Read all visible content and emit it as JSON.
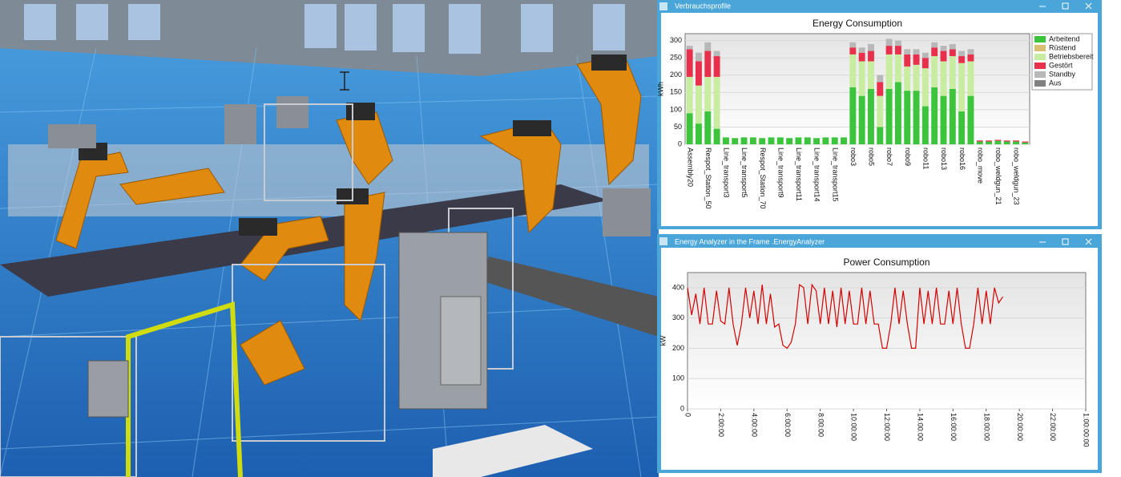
{
  "windows": [
    {
      "title": "Verbrauchsprofile"
    },
    {
      "title": "Energy Analyzer in the Frame .EnergyAnalyzer"
    }
  ],
  "chart_data": [
    {
      "type": "bar",
      "title": "Energy Consumption",
      "y_label": "kWh",
      "categories": [
        "Assembly20",
        null,
        "Respot_Station_50",
        null,
        "Line_transport3",
        null,
        "Line_transport5",
        null,
        "Respot_Station_70",
        null,
        "Line_transport9",
        null,
        "Line_transport11",
        null,
        "Line_transport14",
        null,
        "Line_transport15",
        null,
        "robo3",
        null,
        "robo5",
        null,
        "robo7",
        null,
        "robo9",
        null,
        "robo11",
        null,
        "robo13",
        null,
        "robo16",
        null,
        "robo_move",
        null,
        "robo_weldgun_21",
        null,
        "robo_weldgun_23",
        null
      ],
      "series": [
        {
          "name": "Arbeitend",
          "color": "#3cc43c",
          "values": [
            90,
            60,
            95,
            45,
            20,
            18,
            20,
            20,
            18,
            20,
            20,
            18,
            20,
            20,
            18,
            20,
            20,
            20,
            165,
            140,
            160,
            50,
            160,
            180,
            155,
            155,
            110,
            165,
            140,
            160,
            95,
            140,
            8,
            8,
            10,
            8,
            8,
            5
          ]
        },
        {
          "name": "Rüstend",
          "color": "#d8c070",
          "values": [
            0,
            0,
            0,
            0,
            0,
            0,
            0,
            0,
            0,
            0,
            0,
            0,
            0,
            0,
            0,
            0,
            0,
            0,
            0,
            0,
            0,
            0,
            0,
            0,
            0,
            0,
            0,
            0,
            0,
            0,
            0,
            0,
            0,
            0,
            0,
            0,
            0,
            0
          ]
        },
        {
          "name": "Betriebsbereit",
          "color": "#c8eca0",
          "values": [
            105,
            110,
            100,
            150,
            0,
            0,
            0,
            0,
            0,
            0,
            0,
            0,
            0,
            0,
            0,
            0,
            0,
            0,
            95,
            100,
            80,
            90,
            100,
            80,
            70,
            75,
            110,
            90,
            100,
            95,
            140,
            100,
            0,
            0,
            0,
            0,
            0,
            0
          ]
        },
        {
          "name": "Gestört",
          "color": "#e8304c",
          "values": [
            80,
            70,
            75,
            60,
            0,
            0,
            0,
            0,
            0,
            0,
            0,
            0,
            0,
            0,
            0,
            0,
            0,
            0,
            20,
            25,
            30,
            40,
            25,
            25,
            35,
            30,
            30,
            25,
            30,
            20,
            20,
            20,
            3,
            3,
            3,
            3,
            3,
            3
          ]
        },
        {
          "name": "Standby",
          "color": "#b8b8b8",
          "values": [
            10,
            25,
            25,
            15,
            0,
            0,
            0,
            0,
            0,
            0,
            0,
            0,
            0,
            0,
            0,
            0,
            0,
            0,
            15,
            15,
            20,
            20,
            20,
            15,
            15,
            15,
            15,
            15,
            15,
            15,
            15,
            15,
            0,
            0,
            0,
            0,
            0,
            0
          ]
        },
        {
          "name": "Aus",
          "color": "#808080",
          "values": [
            0,
            0,
            0,
            0,
            0,
            0,
            0,
            0,
            0,
            0,
            0,
            0,
            0,
            0,
            0,
            0,
            0,
            0,
            0,
            0,
            0,
            0,
            0,
            0,
            0,
            0,
            0,
            0,
            0,
            0,
            0,
            0,
            0,
            0,
            0,
            0,
            0,
            0
          ]
        }
      ],
      "ylim": [
        0,
        320
      ],
      "yticks": [
        0,
        50,
        100,
        150,
        200,
        250,
        300
      ],
      "grid": true,
      "legend": "right"
    },
    {
      "type": "line",
      "title": "Power Consumption",
      "y_label": "kW",
      "color": "#d40000",
      "x": [
        0,
        0.25,
        0.5,
        0.75,
        1,
        1.25,
        1.5,
        1.75,
        2,
        2.25,
        2.5,
        2.75,
        3,
        3.25,
        3.5,
        3.75,
        4,
        4.25,
        4.5,
        4.75,
        5,
        5.25,
        5.5,
        5.75,
        6,
        6.25,
        6.5,
        6.75,
        7,
        7.25,
        7.5,
        7.75,
        8,
        8.25,
        8.5,
        8.75,
        9,
        9.25,
        9.5,
        9.75,
        10,
        10.25,
        10.5,
        10.75,
        11,
        11.25,
        11.5,
        11.75,
        12,
        12.25,
        12.5,
        12.75,
        13,
        13.25,
        13.5,
        13.75,
        14,
        14.25,
        14.5,
        14.75,
        15,
        15.25,
        15.5,
        15.75,
        16,
        16.25,
        16.5,
        16.75,
        17,
        17.25,
        17.5,
        17.75,
        18,
        18.25,
        18.5,
        18.75,
        19
      ],
      "values": [
        400,
        310,
        380,
        280,
        400,
        280,
        280,
        390,
        290,
        280,
        400,
        280,
        210,
        280,
        400,
        300,
        390,
        280,
        410,
        280,
        380,
        270,
        280,
        210,
        200,
        220,
        280,
        410,
        400,
        280,
        410,
        390,
        280,
        400,
        280,
        390,
        270,
        400,
        280,
        390,
        280,
        280,
        400,
        280,
        390,
        280,
        280,
        200,
        200,
        280,
        400,
        280,
        390,
        280,
        200,
        200,
        400,
        280,
        390,
        280,
        400,
        280,
        280,
        390,
        280,
        400,
        280,
        200,
        200,
        280,
        400,
        280,
        390,
        280,
        400,
        350,
        370
      ],
      "xlim": [
        0,
        24
      ],
      "xticks": [
        0,
        {
          "value": 2,
          "label": "2:00:00"
        },
        {
          "value": 4,
          "label": "4:00:00"
        },
        {
          "value": 6,
          "label": "6:00:00"
        },
        {
          "value": 8,
          "label": "8:00:00"
        },
        {
          "value": 10,
          "label": "10:00:00"
        },
        {
          "value": 12,
          "label": "12:00:00"
        },
        {
          "value": 14,
          "label": "14:00:00"
        },
        {
          "value": 16,
          "label": "16:00:00"
        },
        {
          "value": 18,
          "label": "18:00:00"
        },
        {
          "value": 20,
          "label": "20:00:00"
        },
        {
          "value": 22,
          "label": "22:00:00"
        },
        {
          "value": 24,
          "label": "1:00:00:00"
        }
      ],
      "ylim": [
        0,
        450
      ],
      "yticks": [
        0,
        100,
        200,
        300,
        400
      ],
      "grid": true
    }
  ]
}
